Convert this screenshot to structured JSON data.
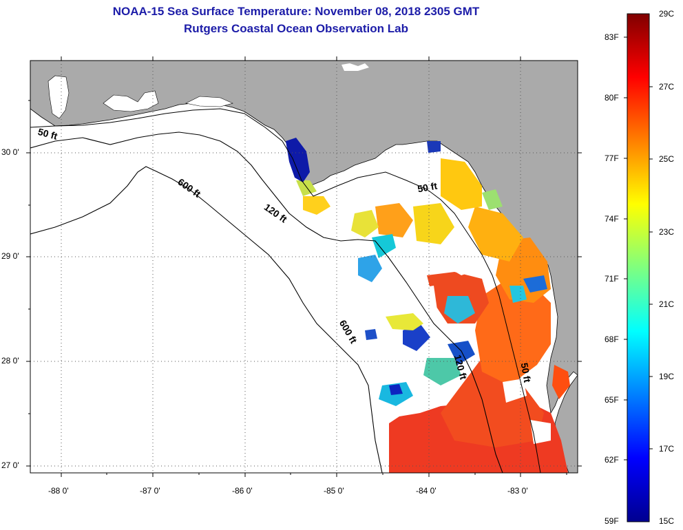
{
  "header": {
    "title": "NOAA-15 Sea Surface Temperature:  November 08, 2018 2305 GMT",
    "subtitle": "Rutgers Coastal Ocean Observation Lab"
  },
  "map": {
    "lat_range": [
      26.93,
      30.86
    ],
    "lon_range": [
      -88.33,
      -82.37
    ],
    "lat_ticks": [
      "30 0'",
      "29 0'",
      "28 0'",
      "27 0'"
    ],
    "lon_ticks": [
      "-88 0'",
      "-87 0'",
      "-86 0'",
      "-85 0'",
      "-84 0'",
      "-83 0'"
    ],
    "contour_labels": [
      {
        "text": "50 ft",
        "lon": -88.15,
        "lat": 30.13,
        "rotate": 15
      },
      {
        "text": "600 ft",
        "lon": -86.62,
        "lat": 29.62,
        "rotate": 35
      },
      {
        "text": "120 ft",
        "lon": -85.68,
        "lat": 29.38,
        "rotate": 35
      },
      {
        "text": "50 ft",
        "lon": -84.0,
        "lat": 29.62,
        "rotate": -10
      },
      {
        "text": "600 ft",
        "lon": -84.9,
        "lat": 28.26,
        "rotate": 60
      },
      {
        "text": "120 ft",
        "lon": -83.68,
        "lat": 27.93,
        "rotate": 75
      },
      {
        "text": "50 ft",
        "lon": -82.97,
        "lat": 27.88,
        "rotate": 80
      }
    ],
    "colors": {
      "land": "#aaaaaa",
      "water": "#ffffff",
      "title": "#1c1ca8"
    }
  },
  "colorbar": {
    "min_c": 15,
    "max_c": 29,
    "celsius_labels": [
      "29C",
      "27C",
      "25C",
      "23C",
      "21C",
      "19C",
      "17C",
      "15C"
    ],
    "fahrenheit_labels": [
      "83F",
      "80F",
      "77F",
      "74F",
      "71F",
      "68F",
      "65F",
      "62F",
      "59F"
    ],
    "colormap": "jet"
  }
}
